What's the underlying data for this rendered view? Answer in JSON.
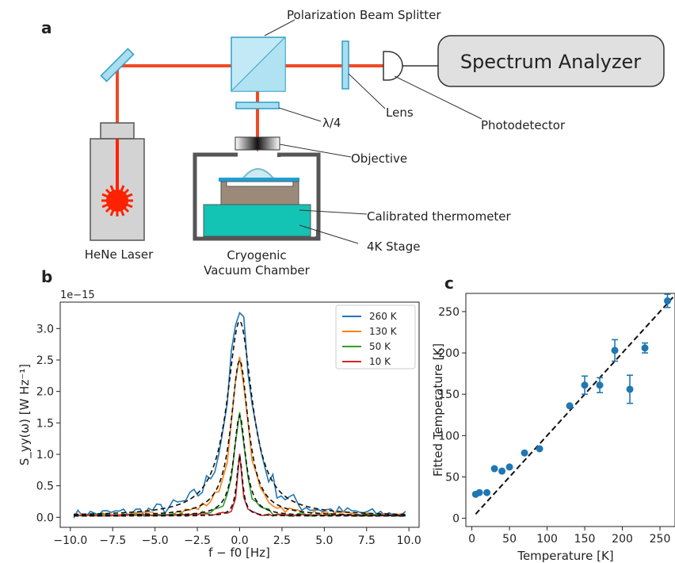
{
  "panels": {
    "a": "a",
    "b": "b",
    "c": "c"
  },
  "diagram": {
    "labels": {
      "pbs": "Polarization Beam Splitter",
      "spectrum_analyzer": "Spectrum Analyzer",
      "lens": "Lens",
      "photodetector": "Photodetector",
      "quarter_wave": "λ/4",
      "objective": "Objective",
      "thermometer": "Calibrated thermometer",
      "stage": "4K Stage",
      "laser": "HeNe Laser",
      "chamber_line1": "Cryogenic",
      "chamber_line2": "Vacuum Chamber"
    },
    "colors": {
      "beam": "#f04a25",
      "optic": "#a8def0",
      "optic_edge": "#2e9ec6",
      "laser_body": "#d3d3d3",
      "analyzer_box": "#e0e0e0",
      "stage": "#13c3b4",
      "thermometer_block": "#9b8a7a",
      "laser_star": "#ff2200"
    }
  },
  "chart_data": [
    {
      "panel": "b",
      "type": "line",
      "offset_text": "1e−15",
      "xlabel": "f − f0 [Hz]",
      "ylabel": "S_yy(ω) [W Hz⁻¹]",
      "xlim": [
        -10.6,
        10.6
      ],
      "ylim": [
        -0.16,
        3.42
      ],
      "xticks": [
        -10.0,
        -7.5,
        -5.0,
        -2.5,
        0.0,
        2.5,
        5.0,
        7.5,
        10.0
      ],
      "xtick_labels": [
        "−10.0",
        "−7.5",
        "−5.0",
        "−2.5",
        "0.0",
        "2.5",
        "5.0",
        "7.5",
        "10.0"
      ],
      "yticks": [
        0.0,
        0.5,
        1.0,
        1.5,
        2.0,
        2.5,
        3.0
      ],
      "ytick_labels": [
        "0.0",
        "0.5",
        "1.0",
        "1.5",
        "2.0",
        "2.5",
        "3.0"
      ],
      "legend_position": "top-right",
      "series": [
        {
          "name": "260 K",
          "color": "#1f77b4",
          "peak": 3.25,
          "width": 0.85,
          "noise": 0.16
        },
        {
          "name": "130 K",
          "color": "#ff7f0e",
          "peak": 2.55,
          "width": 0.55,
          "noise": 0.06
        },
        {
          "name": "50 K",
          "color": "#2ca02c",
          "peak": 1.67,
          "width": 0.35,
          "noise": 0.04
        },
        {
          "name": "10 K",
          "color": "#d62728",
          "peak": 1.01,
          "width": 0.15,
          "noise": 0.02
        }
      ],
      "fits": [
        {
          "peak": 3.1,
          "width": 0.9
        },
        {
          "peak": 2.48,
          "width": 0.62
        },
        {
          "peak": 1.6,
          "width": 0.42
        },
        {
          "peak": 0.97,
          "width": 0.2
        }
      ]
    },
    {
      "panel": "c",
      "type": "scatter",
      "xlabel": "Temperature [K]",
      "ylabel": "Fitted Temperature [K]",
      "xlim": [
        -8,
        270
      ],
      "ylim": [
        -10,
        272
      ],
      "xticks": [
        0,
        50,
        100,
        150,
        200,
        250
      ],
      "xtick_labels": [
        "0",
        "50",
        "100",
        "150",
        "200",
        "250"
      ],
      "yticks": [
        0,
        50,
        100,
        150,
        200,
        250
      ],
      "ytick_labels": [
        "0",
        "50",
        "100",
        "150",
        "200",
        "250"
      ],
      "point_color": "#1f77b4",
      "points": [
        {
          "x": 5,
          "y": 29,
          "err": 0
        },
        {
          "x": 10,
          "y": 31,
          "err": 0
        },
        {
          "x": 20,
          "y": 31,
          "err": 0
        },
        {
          "x": 30,
          "y": 60,
          "err": 0
        },
        {
          "x": 40,
          "y": 57,
          "err": 0
        },
        {
          "x": 50,
          "y": 62,
          "err": 0
        },
        {
          "x": 70,
          "y": 79,
          "err": 0
        },
        {
          "x": 90,
          "y": 84,
          "err": 0
        },
        {
          "x": 130,
          "y": 136,
          "err": 0
        },
        {
          "x": 150,
          "y": 161,
          "err": 11
        },
        {
          "x": 170,
          "y": 161,
          "err": 9
        },
        {
          "x": 190,
          "y": 203,
          "err": 13
        },
        {
          "x": 210,
          "y": 156,
          "err": 17
        },
        {
          "x": 230,
          "y": 206,
          "err": 6
        },
        {
          "x": 260,
          "y": 263,
          "err": 8
        }
      ],
      "fit_line": {
        "x": [
          5,
          270
        ],
        "y": [
          5,
          270
        ]
      }
    }
  ]
}
